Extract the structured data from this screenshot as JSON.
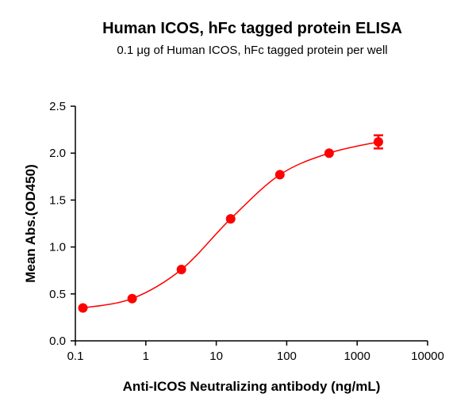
{
  "chart_data": {
    "type": "scatter",
    "title": "Human ICOS, hFc tagged protein ELISA",
    "subtitle": "0.1 μg of Human ICOS, hFc tagged protein per well",
    "xlabel": "Anti-ICOS Neutralizing antibody (ng/mL)",
    "ylabel": "Mean Abs.(OD450)",
    "xscale": "log",
    "xlim": [
      0.1,
      10000
    ],
    "ylim": [
      0,
      2.5
    ],
    "xticks": [
      0.1,
      1,
      10,
      100,
      1000,
      10000
    ],
    "xtick_labels": [
      "0.1",
      "1",
      "10",
      "100",
      "1000",
      "10000"
    ],
    "yticks": [
      0,
      0.5,
      1,
      1.5,
      2,
      2.5
    ],
    "ytick_labels": [
      "0.0",
      "0.5",
      "1.0",
      "1.5",
      "2.0",
      "2.5"
    ],
    "grid": false,
    "color": "#ff0000",
    "fit": "sigmoidal curve",
    "points": [
      {
        "x": 0.128,
        "y": 0.35,
        "err": 0
      },
      {
        "x": 0.64,
        "y": 0.45,
        "err": 0
      },
      {
        "x": 3.2,
        "y": 0.76,
        "err": 0
      },
      {
        "x": 16,
        "y": 1.3,
        "err": 0
      },
      {
        "x": 80,
        "y": 1.77,
        "err": 0
      },
      {
        "x": 400,
        "y": 2.0,
        "err": 0
      },
      {
        "x": 2000,
        "y": 2.12,
        "err": 0.07
      }
    ]
  }
}
